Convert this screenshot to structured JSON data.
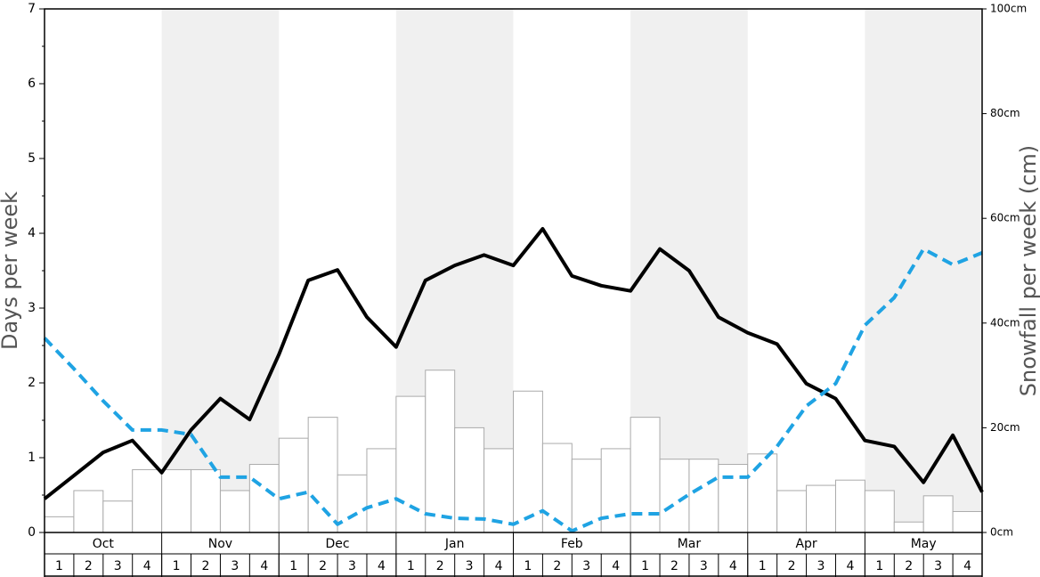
{
  "chart_data": {
    "type": "bar-line",
    "ylabel": "Days per week",
    "y2label": "Snowfall per week (cm)",
    "months": [
      "Oct",
      "Nov",
      "Dec",
      "Jan",
      "Feb",
      "Mar",
      "Apr",
      "May"
    ],
    "categories": [
      "1",
      "2",
      "3",
      "4",
      "1",
      "2",
      "3",
      "4",
      "1",
      "2",
      "3",
      "4",
      "1",
      "2",
      "3",
      "4",
      "1",
      "2",
      "3",
      "4",
      "1",
      "2",
      "3",
      "4",
      "1",
      "2",
      "3",
      "4",
      "1",
      "2",
      "3",
      "4"
    ],
    "ylim": [
      0,
      7
    ],
    "yticks": [
      0,
      1,
      2,
      3,
      4,
      5,
      6,
      7
    ],
    "y2lim": [
      0,
      100
    ],
    "y2ticks": [
      {
        "value": 0,
        "label": "0cm"
      },
      {
        "value": 20,
        "label": "20cm"
      },
      {
        "value": 40,
        "label": "40cm"
      },
      {
        "value": 60,
        "label": "60cm"
      },
      {
        "value": 80,
        "label": "80cm"
      },
      {
        "value": 100,
        "label": "100cm"
      }
    ],
    "xlim": [
      0,
      32
    ],
    "bars": {
      "axis": "y2",
      "color": "#ffffff",
      "edge": "#aaaaaa",
      "values": [
        3,
        8,
        6,
        12,
        12,
        12,
        8,
        13,
        18,
        22,
        11,
        16,
        26,
        31,
        20,
        16,
        27,
        17,
        14,
        16,
        22,
        14,
        14,
        13,
        15,
        8,
        9,
        10,
        8,
        2,
        7,
        4
      ]
    },
    "series": [
      {
        "color": "#000000",
        "dash": false,
        "x": [
          0,
          1,
          2,
          3,
          4,
          5,
          6,
          7,
          8,
          9,
          10,
          11,
          12,
          13,
          14,
          15,
          16,
          17,
          18,
          19,
          20,
          21,
          22,
          23,
          24,
          25,
          26,
          27,
          28,
          29,
          30,
          31,
          32
        ],
        "values": [
          0.45,
          0.76,
          1.07,
          1.23,
          0.8,
          1.37,
          1.79,
          1.51,
          2.38,
          3.37,
          3.51,
          2.88,
          2.48,
          3.37,
          3.57,
          3.71,
          3.57,
          4.06,
          3.43,
          3.3,
          3.23,
          3.79,
          3.5,
          2.88,
          2.67,
          2.52,
          1.99,
          1.79,
          1.23,
          1.15,
          0.67,
          1.3,
          0.54
        ]
      },
      {
        "color": "#1fa3e3",
        "dash": true,
        "x": [
          0,
          1,
          2,
          3,
          4,
          5,
          6,
          7,
          8,
          9,
          10,
          11,
          12,
          13,
          14,
          15,
          16,
          17,
          18,
          19,
          20,
          21,
          22,
          23,
          24,
          25,
          26,
          27,
          28,
          29,
          30,
          31,
          32
        ],
        "values": [
          2.6,
          2.19,
          1.76,
          1.37,
          1.37,
          1.31,
          0.74,
          0.74,
          0.45,
          0.54,
          0.11,
          0.33,
          0.45,
          0.25,
          0.19,
          0.18,
          0.11,
          0.29,
          0.02,
          0.19,
          0.25,
          0.25,
          0.51,
          0.74,
          0.74,
          1.15,
          1.69,
          1.99,
          2.77,
          3.14,
          3.79,
          3.58,
          3.74
        ]
      }
    ]
  }
}
